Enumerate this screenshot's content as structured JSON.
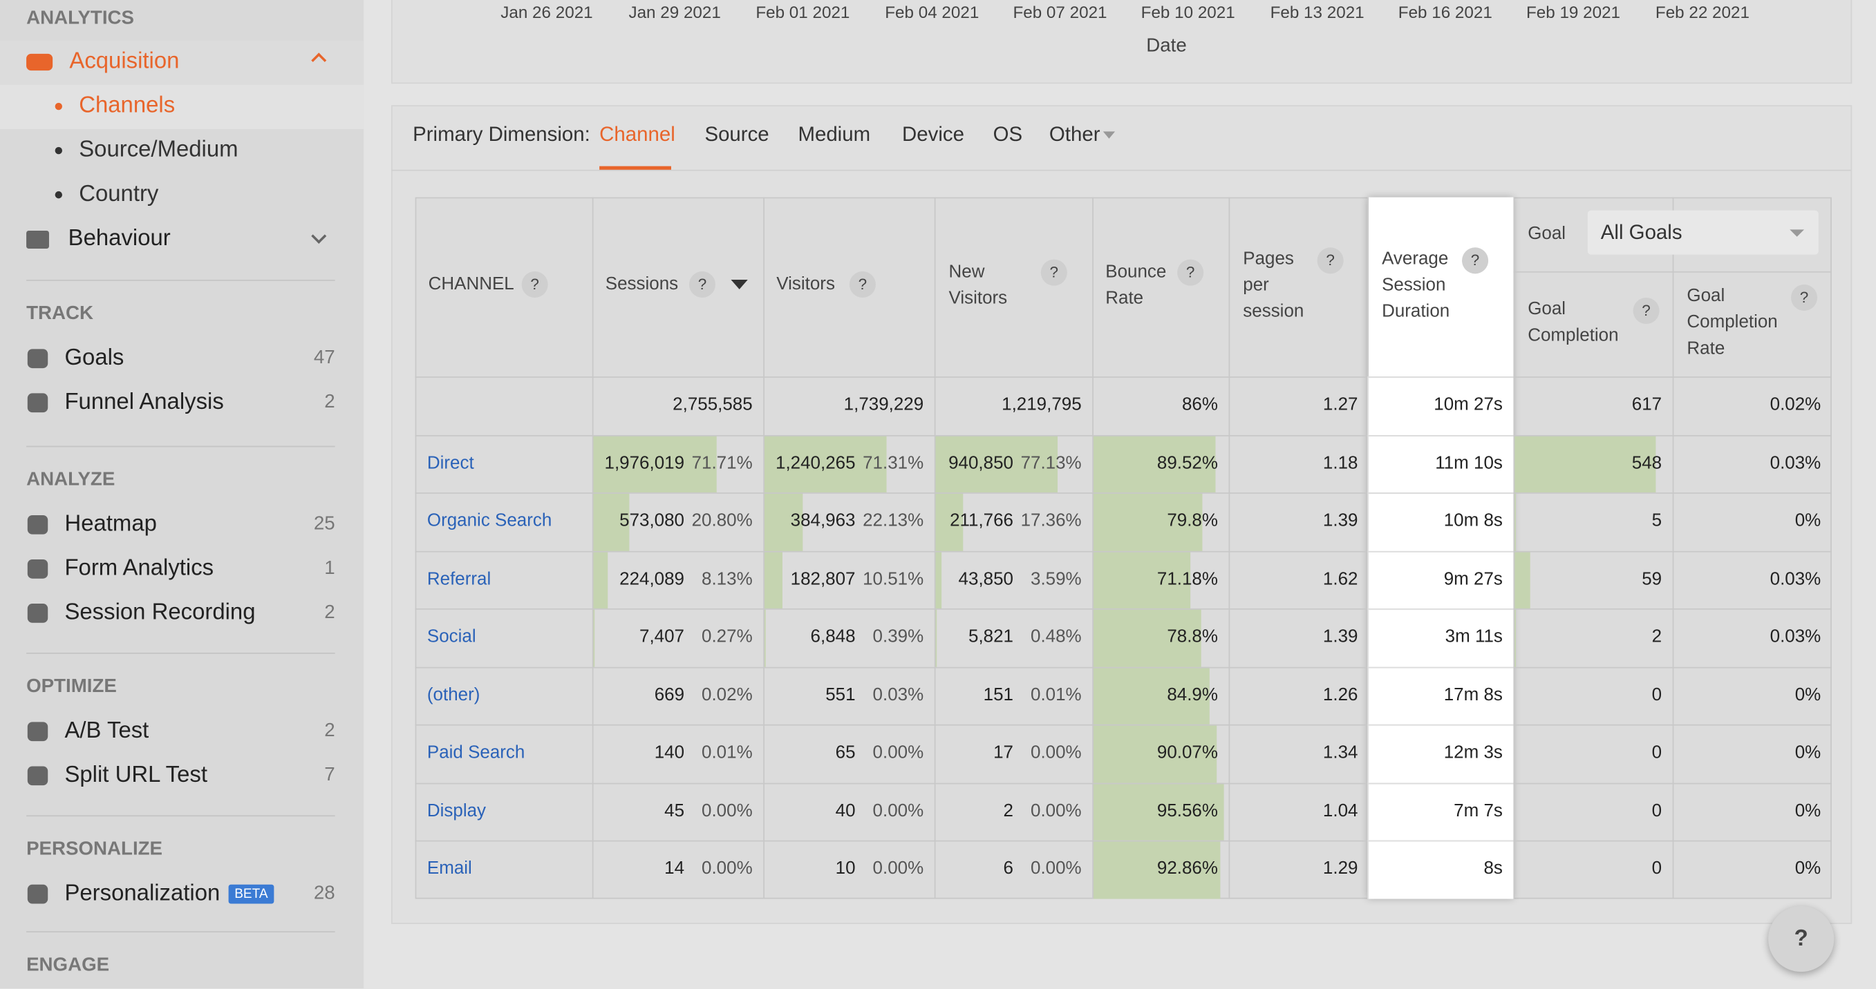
{
  "sidebar": {
    "top_heading": "ANALYTICS",
    "acquisition": "Acquisition",
    "sub_items": [
      "Channels",
      "Source/Medium",
      "Country"
    ],
    "behaviour": "Behaviour",
    "sections": [
      {
        "heading": "TRACK",
        "items": [
          {
            "label": "Goals",
            "count": 47
          },
          {
            "label": "Funnel Analysis",
            "count": 2
          }
        ]
      },
      {
        "heading": "ANALYZE",
        "items": [
          {
            "label": "Heatmap",
            "count": 25
          },
          {
            "label": "Form Analytics",
            "count": 1
          },
          {
            "label": "Session Recording",
            "count": 2
          }
        ]
      },
      {
        "heading": "OPTIMIZE",
        "items": [
          {
            "label": "A/B Test",
            "count": 2
          },
          {
            "label": "Split URL Test",
            "count": 7
          }
        ]
      },
      {
        "heading": "PERSONALIZE",
        "items": [
          {
            "label": "Personalization",
            "badge": "BETA",
            "count": 28
          }
        ]
      }
    ],
    "bottom_heading": "ENGAGE"
  },
  "date_axis": {
    "ticks": [
      "Jan 26 2021",
      "Jan 29 2021",
      "Feb 01 2021",
      "Feb 04 2021",
      "Feb 07 2021",
      "Feb 10 2021",
      "Feb 13 2021",
      "Feb 16 2021",
      "Feb 19 2021",
      "Feb 22 2021"
    ],
    "label": "Date"
  },
  "dimension": {
    "label": "Primary Dimension:",
    "tabs": [
      "Channel",
      "Source",
      "Medium",
      "Device",
      "OS",
      "Other"
    ]
  },
  "help": "?",
  "table": {
    "headers": [
      "CHANNEL",
      "Sessions",
      "Visitors",
      "New Visitors",
      "Bounce Rate",
      "Pages per session",
      "Average Session Duration"
    ],
    "goal_label": "Goal",
    "goal_select": "All Goals",
    "goal_headers": [
      "Goal Completion",
      "Goal Completion Rate"
    ],
    "totals": [
      "2,755,585",
      "1,739,229",
      "1,219,795",
      "86%",
      "1.27",
      "10m 27s",
      "617",
      "0.02%"
    ],
    "rows": [
      [
        "Direct",
        "1,976,019",
        "71.71%",
        "1,240,265",
        "71.31%",
        "940,850",
        "77.13%",
        "89.52%",
        "1.18",
        "11m 10s",
        "548",
        "0.03%"
      ],
      [
        "Organic Search",
        "573,080",
        "20.80%",
        "384,963",
        "22.13%",
        "211,766",
        "17.36%",
        "79.8%",
        "1.39",
        "10m 8s",
        "5",
        "0%"
      ],
      [
        "Referral",
        "224,089",
        "8.13%",
        "182,807",
        "10.51%",
        "43,850",
        "3.59%",
        "71.18%",
        "1.62",
        "9m 27s",
        "59",
        "0.03%"
      ],
      [
        "Social",
        "7,407",
        "0.27%",
        "6,848",
        "0.39%",
        "5,821",
        "0.48%",
        "78.8%",
        "1.39",
        "3m 11s",
        "2",
        "0.03%"
      ],
      [
        "(other)",
        "669",
        "0.02%",
        "551",
        "0.03%",
        "151",
        "0.01%",
        "84.9%",
        "1.26",
        "17m 8s",
        "0",
        "0%"
      ],
      [
        "Paid Search",
        "140",
        "0.01%",
        "65",
        "0.00%",
        "17",
        "0.00%",
        "90.07%",
        "1.34",
        "12m 3s",
        "0",
        "0%"
      ],
      [
        "Display",
        "45",
        "0.00%",
        "40",
        "0.00%",
        "2",
        "0.00%",
        "95.56%",
        "1.04",
        "7m 7s",
        "0",
        "0%"
      ],
      [
        "Email",
        "14",
        "0.00%",
        "10",
        "0.00%",
        "6",
        "0.00%",
        "92.86%",
        "1.29",
        "8s",
        "0",
        "0%"
      ]
    ]
  }
}
